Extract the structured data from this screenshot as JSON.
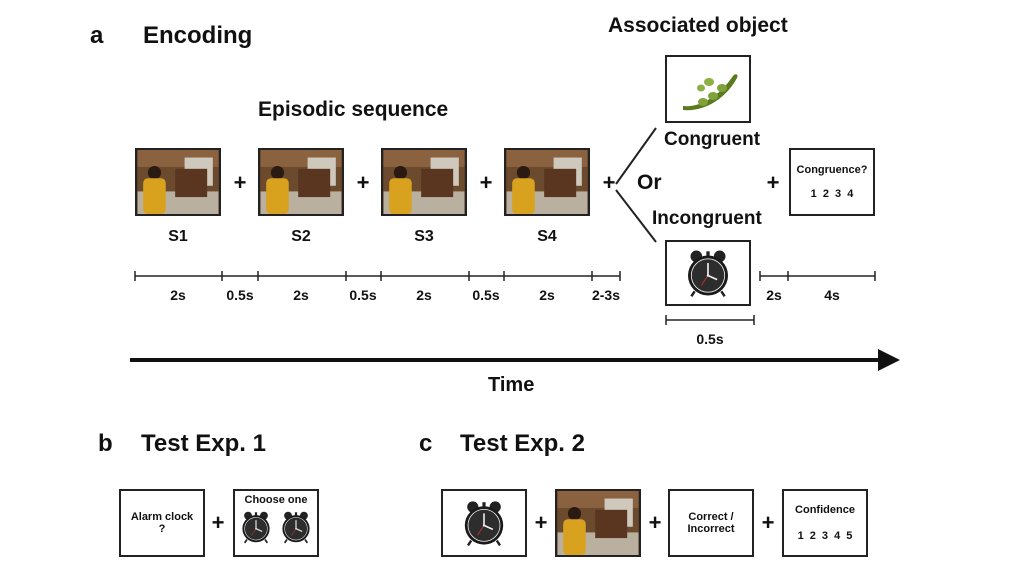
{
  "panel_a": {
    "letter": "a",
    "title": "Encoding",
    "associated_title": "Associated object",
    "episodic_title": "Episodic sequence",
    "scene_labels": [
      "S1",
      "S2",
      "S3",
      "S4"
    ],
    "plus": "+",
    "congruent": "Congruent",
    "or": "Or",
    "incongruent": "Incongruent",
    "question_box": {
      "title": "Congruence?",
      "scale": "1 2 3 4"
    },
    "durations": [
      "2s",
      "0.5s",
      "2s",
      "0.5s",
      "2s",
      "0.5s",
      "2s",
      "2-3s",
      "2s",
      "4s"
    ],
    "object_duration": "0.5s",
    "time_label": "Time"
  },
  "panel_b": {
    "letter": "b",
    "title": "Test Exp. 1",
    "cue_box": {
      "line1": "Alarm clock",
      "line2": "?"
    },
    "choose_box": {
      "title": "Choose one"
    },
    "plus": "+"
  },
  "panel_c": {
    "letter": "c",
    "title": "Test Exp. 2",
    "plus": "+",
    "correct_box": {
      "line1": "Correct /",
      "line2": "Incorrect"
    },
    "confidence_box": {
      "title": "Confidence",
      "scale": "1 2 3 4 5"
    }
  },
  "icons": {
    "scene_photo": "kitchen-scene-photo",
    "pea_pod": "pea-pod-icon",
    "alarm_clock": "alarm-clock-icon"
  }
}
